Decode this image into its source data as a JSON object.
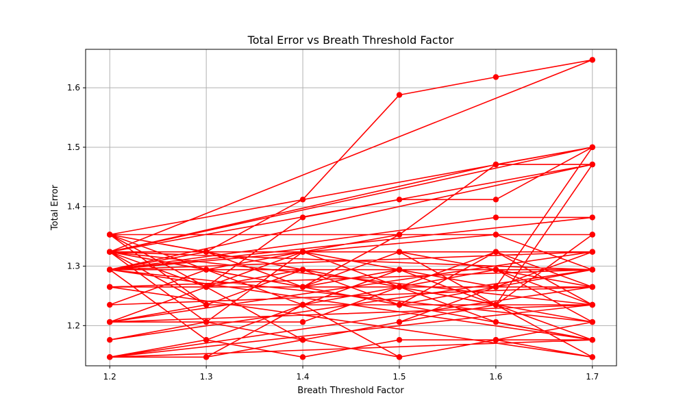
{
  "chart_data": {
    "type": "line",
    "title": "Total Error vs Breath Threshold Factor",
    "xlabel": "Breath Threshold Factor",
    "ylabel": "Total Error",
    "xlim": [
      1.175,
      1.725
    ],
    "ylim": [
      1.1324,
      1.6647
    ],
    "x_ticks": [
      1.2,
      1.3,
      1.4,
      1.5,
      1.6,
      1.7
    ],
    "x_tick_labels": [
      "1.2",
      "1.3",
      "1.4",
      "1.5",
      "1.6",
      "1.7"
    ],
    "y_ticks": [
      1.2,
      1.3,
      1.4,
      1.5,
      1.6
    ],
    "y_tick_labels": [
      "1.2",
      "1.3",
      "1.4",
      "1.5",
      "1.6"
    ],
    "grid": true,
    "series": [
      {
        "color": "#ff0000",
        "marker": "circle",
        "points": [
          [
            1.2,
            1.324
          ],
          [
            1.3,
            1.324
          ],
          [
            1.4,
            1.412
          ],
          [
            1.5,
            1.588
          ],
          [
            1.6,
            1.618
          ],
          [
            1.7,
            1.647
          ],
          [
            1.2,
            1.324
          ],
          [
            1.3,
            1.265
          ],
          [
            1.4,
            1.382
          ],
          [
            1.5,
            1.412
          ],
          [
            1.6,
            1.412
          ],
          [
            1.7,
            1.5
          ],
          [
            1.2,
            1.324
          ],
          [
            1.3,
            1.294
          ],
          [
            1.4,
            1.265
          ],
          [
            1.5,
            1.353
          ],
          [
            1.6,
            1.471
          ],
          [
            1.7,
            1.5
          ],
          [
            1.2,
            1.324
          ],
          [
            1.7,
            1.647
          ],
          [
            1.2,
            1.324
          ],
          [
            1.6,
            1.471
          ],
          [
            1.7,
            1.471
          ],
          [
            1.2,
            1.294
          ],
          [
            1.6,
            1.382
          ],
          [
            1.7,
            1.382
          ],
          [
            1.2,
            1.294
          ],
          [
            1.6,
            1.353
          ],
          [
            1.7,
            1.353
          ],
          [
            1.2,
            1.353
          ],
          [
            1.3,
            1.294
          ],
          [
            1.4,
            1.235
          ],
          [
            1.5,
            1.235
          ],
          [
            1.6,
            1.265
          ],
          [
            1.7,
            1.5
          ],
          [
            1.2,
            1.353
          ],
          [
            1.3,
            1.265
          ],
          [
            1.4,
            1.294
          ],
          [
            1.5,
            1.265
          ],
          [
            1.6,
            1.235
          ],
          [
            1.7,
            1.471
          ],
          [
            1.2,
            1.324
          ],
          [
            1.3,
            1.294
          ],
          [
            1.4,
            1.324
          ],
          [
            1.5,
            1.294
          ],
          [
            1.6,
            1.265
          ],
          [
            1.7,
            1.324
          ],
          [
            1.2,
            1.294
          ],
          [
            1.3,
            1.324
          ],
          [
            1.4,
            1.265
          ],
          [
            1.5,
            1.324
          ],
          [
            1.6,
            1.294
          ],
          [
            1.7,
            1.294
          ],
          [
            1.2,
            1.265
          ],
          [
            1.3,
            1.265
          ],
          [
            1.4,
            1.324
          ],
          [
            1.5,
            1.265
          ],
          [
            1.6,
            1.324
          ],
          [
            1.7,
            1.265
          ],
          [
            1.2,
            1.235
          ],
          [
            1.3,
            1.294
          ],
          [
            1.4,
            1.265
          ],
          [
            1.5,
            1.294
          ],
          [
            1.6,
            1.235
          ],
          [
            1.7,
            1.353
          ],
          [
            1.2,
            1.353
          ],
          [
            1.3,
            1.235
          ],
          [
            1.4,
            1.235
          ],
          [
            1.5,
            1.294
          ],
          [
            1.6,
            1.294
          ],
          [
            1.7,
            1.235
          ],
          [
            1.2,
            1.324
          ],
          [
            1.3,
            1.235
          ],
          [
            1.4,
            1.294
          ],
          [
            1.5,
            1.235
          ],
          [
            1.6,
            1.265
          ],
          [
            1.7,
            1.294
          ],
          [
            1.2,
            1.294
          ],
          [
            1.3,
            1.294
          ],
          [
            1.4,
            1.235
          ],
          [
            1.5,
            1.265
          ],
          [
            1.6,
            1.294
          ],
          [
            1.7,
            1.265
          ],
          [
            1.2,
            1.265
          ],
          [
            1.3,
            1.265
          ],
          [
            1.4,
            1.265
          ],
          [
            1.5,
            1.235
          ],
          [
            1.6,
            1.324
          ],
          [
            1.7,
            1.235
          ],
          [
            1.2,
            1.206
          ],
          [
            1.3,
            1.265
          ],
          [
            1.4,
            1.294
          ],
          [
            1.5,
            1.265
          ],
          [
            1.6,
            1.265
          ],
          [
            1.7,
            1.324
          ],
          [
            1.2,
            1.206
          ],
          [
            1.3,
            1.206
          ],
          [
            1.4,
            1.206
          ],
          [
            1.5,
            1.265
          ],
          [
            1.6,
            1.294
          ],
          [
            1.7,
            1.294
          ],
          [
            1.2,
            1.176
          ],
          [
            1.3,
            1.206
          ],
          [
            1.4,
            1.176
          ],
          [
            1.5,
            1.206
          ],
          [
            1.6,
            1.265
          ],
          [
            1.7,
            1.265
          ],
          [
            1.2,
            1.147
          ],
          [
            1.3,
            1.176
          ],
          [
            1.4,
            1.235
          ],
          [
            1.5,
            1.265
          ],
          [
            1.6,
            1.206
          ],
          [
            1.7,
            1.176
          ],
          [
            1.2,
            1.147
          ],
          [
            1.3,
            1.147
          ],
          [
            1.4,
            1.176
          ],
          [
            1.5,
            1.147
          ],
          [
            1.6,
            1.176
          ],
          [
            1.7,
            1.206
          ],
          [
            1.2,
            1.294
          ],
          [
            1.3,
            1.176
          ],
          [
            1.4,
            1.147
          ],
          [
            1.5,
            1.176
          ],
          [
            1.6,
            1.176
          ],
          [
            1.7,
            1.147
          ],
          [
            1.2,
            1.265
          ],
          [
            1.3,
            1.265
          ],
          [
            1.4,
            1.176
          ],
          [
            1.5,
            1.206
          ],
          [
            1.6,
            1.235
          ],
          [
            1.7,
            1.176
          ],
          [
            1.2,
            1.324
          ],
          [
            1.3,
            1.206
          ],
          [
            1.4,
            1.324
          ],
          [
            1.5,
            1.324
          ],
          [
            1.6,
            1.324
          ],
          [
            1.7,
            1.324
          ],
          [
            1.2,
            1.206
          ],
          [
            1.3,
            1.235
          ],
          [
            1.4,
            1.235
          ],
          [
            1.5,
            1.235
          ],
          [
            1.6,
            1.235
          ],
          [
            1.7,
            1.235
          ],
          [
            1.2,
            1.147
          ],
          [
            1.3,
            1.147
          ],
          [
            1.4,
            1.235
          ],
          [
            1.5,
            1.147
          ],
          [
            1.6,
            1.176
          ],
          [
            1.7,
            1.176
          ],
          [
            1.2,
            1.294
          ],
          [
            1.3,
            1.324
          ],
          [
            1.4,
            1.294
          ],
          [
            1.5,
            1.294
          ],
          [
            1.6,
            1.294
          ],
          [
            1.7,
            1.206
          ],
          [
            1.2,
            1.353
          ],
          [
            1.3,
            1.324
          ],
          [
            1.4,
            1.324
          ],
          [
            1.5,
            1.294
          ],
          [
            1.6,
            1.294
          ],
          [
            1.7,
            1.265
          ],
          [
            1.2,
            1.265
          ],
          [
            1.3,
            1.265
          ],
          [
            1.4,
            1.324
          ],
          [
            1.5,
            1.353
          ],
          [
            1.6,
            1.353
          ],
          [
            1.7,
            1.294
          ],
          [
            1.2,
            1.324
          ],
          [
            1.3,
            1.265
          ],
          [
            1.4,
            1.324
          ],
          [
            1.5,
            1.324
          ],
          [
            1.6,
            1.235
          ],
          [
            1.7,
            1.147
          ]
        ]
      }
    ]
  }
}
